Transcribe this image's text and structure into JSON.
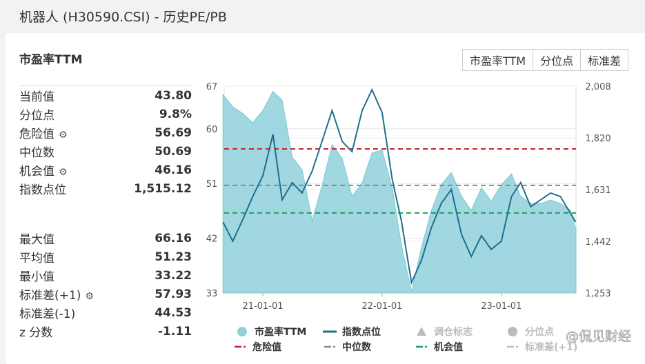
{
  "title": "机器人 (H30590.CSI) - 历史PE/PB",
  "card_title": "市盈率TTM",
  "buttons": [
    "市盈率TTM",
    "分位点",
    "标准差"
  ],
  "stats_top": [
    {
      "label": "当前值",
      "value": "43.80"
    },
    {
      "label": "分位点",
      "value": "9.8%"
    },
    {
      "label": "危险值",
      "value": "56.69",
      "gear": true
    },
    {
      "label": "中位数",
      "value": "50.69"
    },
    {
      "label": "机会值",
      "value": "46.16",
      "gear": true
    },
    {
      "label": "指数点位",
      "value": "1,515.12"
    }
  ],
  "stats_bottom": [
    {
      "label": "最大值",
      "value": "66.16"
    },
    {
      "label": "平均值",
      "value": "51.23"
    },
    {
      "label": "最小值",
      "value": "33.22"
    },
    {
      "label": "标准差(+1)",
      "value": "57.93",
      "gear": true
    },
    {
      "label": "标准差(-1)",
      "value": "44.53"
    },
    {
      "label": "z 分数",
      "value": "-1.11"
    }
  ],
  "watermark": "@侃见财经",
  "chart_data": {
    "type": "area+line",
    "left_axis": {
      "ticks": [
        "67",
        "60",
        "51",
        "42",
        "33"
      ],
      "range": [
        33,
        67
      ]
    },
    "right_axis": {
      "ticks": [
        "2,008",
        "1,820",
        "1,631",
        "1,442",
        "1,253"
      ],
      "range": [
        1253,
        2008
      ]
    },
    "x_ticks": [
      "21-01-01",
      "22-01-01",
      "23-01-01"
    ],
    "x": [
      "2020-09-01",
      "2020-10-01",
      "2020-11-01",
      "2020-12-01",
      "2021-01-01",
      "2021-02-01",
      "2021-03-01",
      "2021-04-01",
      "2021-05-01",
      "2021-06-01",
      "2021-07-01",
      "2021-08-01",
      "2021-09-01",
      "2021-10-01",
      "2021-11-01",
      "2021-12-01",
      "2022-01-01",
      "2022-02-01",
      "2022-03-01",
      "2022-04-01",
      "2022-05-01",
      "2022-06-01",
      "2022-07-01",
      "2022-08-01",
      "2022-09-01",
      "2022-10-01",
      "2022-11-01",
      "2022-12-01",
      "2023-01-01",
      "2023-02-01",
      "2023-03-01",
      "2023-04-01",
      "2023-05-01",
      "2023-06-01",
      "2023-07-01",
      "2023-08-01",
      "2023-08-15"
    ],
    "series": [
      {
        "name": "市盈率TTM",
        "kind": "area",
        "axis": "left",
        "color": "#8fd0da",
        "values": [
          65.6,
          63.6,
          62.5,
          61.0,
          63.0,
          66.16,
          64.7,
          55.3,
          53.3,
          44.9,
          50.6,
          57.4,
          55.1,
          48.9,
          51.1,
          56.0,
          56.5,
          50.3,
          40.9,
          33.22,
          40.4,
          46.6,
          50.8,
          52.8,
          48.9,
          46.6,
          50.3,
          48.1,
          50.8,
          52.6,
          48.9,
          47.7,
          47.7,
          48.3,
          47.7,
          46.6,
          43.8
        ]
      },
      {
        "name": "指数点位",
        "kind": "line",
        "axis": "right",
        "color": "#1f6e8c",
        "values": [
          1512,
          1442,
          1522,
          1605,
          1681,
          1832,
          1593,
          1656,
          1618,
          1698,
          1806,
          1919,
          1806,
          1769,
          1919,
          1995,
          1912,
          1668,
          1517,
          1291,
          1371,
          1492,
          1580,
          1631,
          1467,
          1386,
          1462,
          1412,
          1442,
          1605,
          1656,
          1568,
          1593,
          1618,
          1605,
          1543,
          1515
        ]
      }
    ],
    "reference_lines": [
      {
        "name": "危险值",
        "value": 56.69,
        "color": "#c0242d"
      },
      {
        "name": "中位数",
        "value": 50.69,
        "color": "#888888"
      },
      {
        "name": "机会值",
        "value": 46.16,
        "color": "#1e9e5a"
      }
    ],
    "legend": [
      {
        "name": "市盈率TTM",
        "symbol": "circle",
        "color": "#8fd0da"
      },
      {
        "name": "指数点位",
        "symbol": "line",
        "color": "#1f6e8c"
      },
      {
        "name": "调仓标志",
        "symbol": "triangle",
        "color": "#bbbbbb",
        "off": true
      },
      {
        "name": "分位点",
        "symbol": "circle",
        "color": "#bbbbbb",
        "off": true
      },
      {
        "name": "危险值",
        "symbol": "dash",
        "color": "#c0242d"
      },
      {
        "name": "中位数",
        "symbol": "dash",
        "color": "#888888"
      },
      {
        "name": "机会值",
        "symbol": "dash",
        "color": "#1e9e5a"
      },
      {
        "name": "标准差(+1)",
        "symbol": "dash",
        "color": "#bbbbbb",
        "off": true
      }
    ]
  }
}
